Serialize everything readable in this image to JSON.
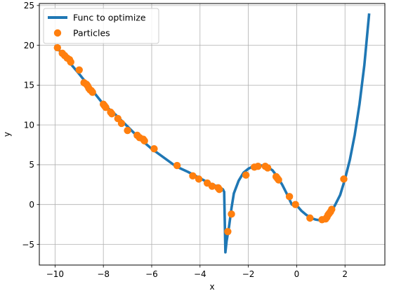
{
  "chart_data": {
    "type": "line",
    "title": "",
    "xlabel": "x",
    "ylabel": "y",
    "xlim": [
      -10.65,
      3.65
    ],
    "ylim": [
      -7.6,
      25.25
    ],
    "xticks": [
      -10,
      -8,
      -6,
      -4,
      -2,
      0,
      2
    ],
    "yticks": [
      -5,
      0,
      5,
      10,
      15,
      20,
      25
    ],
    "xtick_labels": [
      "−10",
      "−8",
      "−6",
      "−4",
      "−2",
      "0",
      "2"
    ],
    "ytick_labels": [
      "−5",
      "0",
      "5",
      "10",
      "15",
      "20",
      "25"
    ],
    "grid": true,
    "legend_position": "top-left",
    "colors": {
      "line": "#1f77b4",
      "particles": "#ff7f0e",
      "grid": "#b0b0b0",
      "axes": "#000000"
    },
    "series": [
      {
        "name": "Func to optimize",
        "kind": "line",
        "x": [
          -10,
          -9.5,
          -9,
          -8.5,
          -8,
          -7.5,
          -7,
          -6.5,
          -6,
          -5.5,
          -5,
          -4.5,
          -4,
          -3.5,
          -3.2,
          -3.05,
          -3.02,
          -3.0,
          -2.95,
          -2.9,
          -2.8,
          -2.7,
          -2.6,
          -2.4,
          -2.2,
          -2.0,
          -1.8,
          -1.6,
          -1.4,
          -1.2,
          -1.0,
          -0.8,
          -0.6,
          -0.4,
          -0.2,
          0.0,
          0.2,
          0.4,
          0.6,
          0.8,
          1.0,
          1.2,
          1.4,
          1.6,
          1.8,
          2.0,
          2.2,
          2.4,
          2.6,
          2.8,
          3.0
        ],
        "y": [
          20.0,
          18.2,
          16.4,
          14.5,
          12.6,
          11.3,
          9.8,
          8.3,
          7.0,
          5.9,
          4.8,
          4.1,
          3.3,
          2.5,
          2.2,
          1.9,
          1.7,
          1.6,
          -6.0,
          -4.6,
          -2.8,
          -0.5,
          1.4,
          3.0,
          4.0,
          4.5,
          4.8,
          4.9,
          4.9,
          4.7,
          4.3,
          3.5,
          2.5,
          1.3,
          0.0,
          -0.1,
          -0.8,
          -1.3,
          -1.7,
          -1.9,
          -2.0,
          -1.8,
          -1.1,
          0.0,
          1.2,
          3.2,
          5.6,
          8.7,
          12.6,
          17.5,
          24.0
        ]
      },
      {
        "name": "Particles",
        "kind": "scatter",
        "x": [
          -9.9,
          -9.7,
          -9.6,
          -9.5,
          -9.4,
          -9.35,
          -9.0,
          -8.8,
          -8.7,
          -8.65,
          -8.6,
          -8.55,
          -8.5,
          -8.45,
          -8.0,
          -7.95,
          -7.9,
          -7.7,
          -7.65,
          -7.4,
          -7.25,
          -7.0,
          -6.6,
          -6.5,
          -6.35,
          -6.3,
          -5.9,
          -4.95,
          -4.3,
          -4.05,
          -3.7,
          -3.5,
          -3.25,
          -3.2,
          -2.85,
          -2.7,
          -2.1,
          -1.75,
          -1.6,
          -1.3,
          -1.2,
          -0.85,
          -0.8,
          -0.75,
          -0.3,
          -0.05,
          0.55,
          1.05,
          1.2,
          1.25,
          1.3,
          1.35,
          1.4,
          1.45,
          1.95
        ],
        "y": [
          19.7,
          19.0,
          18.7,
          18.4,
          18.2,
          17.9,
          16.9,
          15.3,
          15.1,
          14.9,
          14.6,
          14.4,
          14.3,
          14.1,
          12.6,
          12.4,
          12.2,
          11.6,
          11.4,
          10.8,
          10.2,
          9.3,
          8.7,
          8.4,
          8.2,
          8.0,
          7.0,
          4.9,
          3.6,
          3.2,
          2.7,
          2.3,
          2.1,
          1.9,
          -3.4,
          -1.2,
          3.7,
          4.7,
          4.8,
          4.8,
          4.6,
          3.5,
          3.3,
          3.1,
          1.0,
          0.0,
          -1.7,
          -1.9,
          -1.8,
          -1.6,
          -1.3,
          -1.1,
          -0.9,
          -0.6,
          3.2
        ]
      }
    ]
  }
}
